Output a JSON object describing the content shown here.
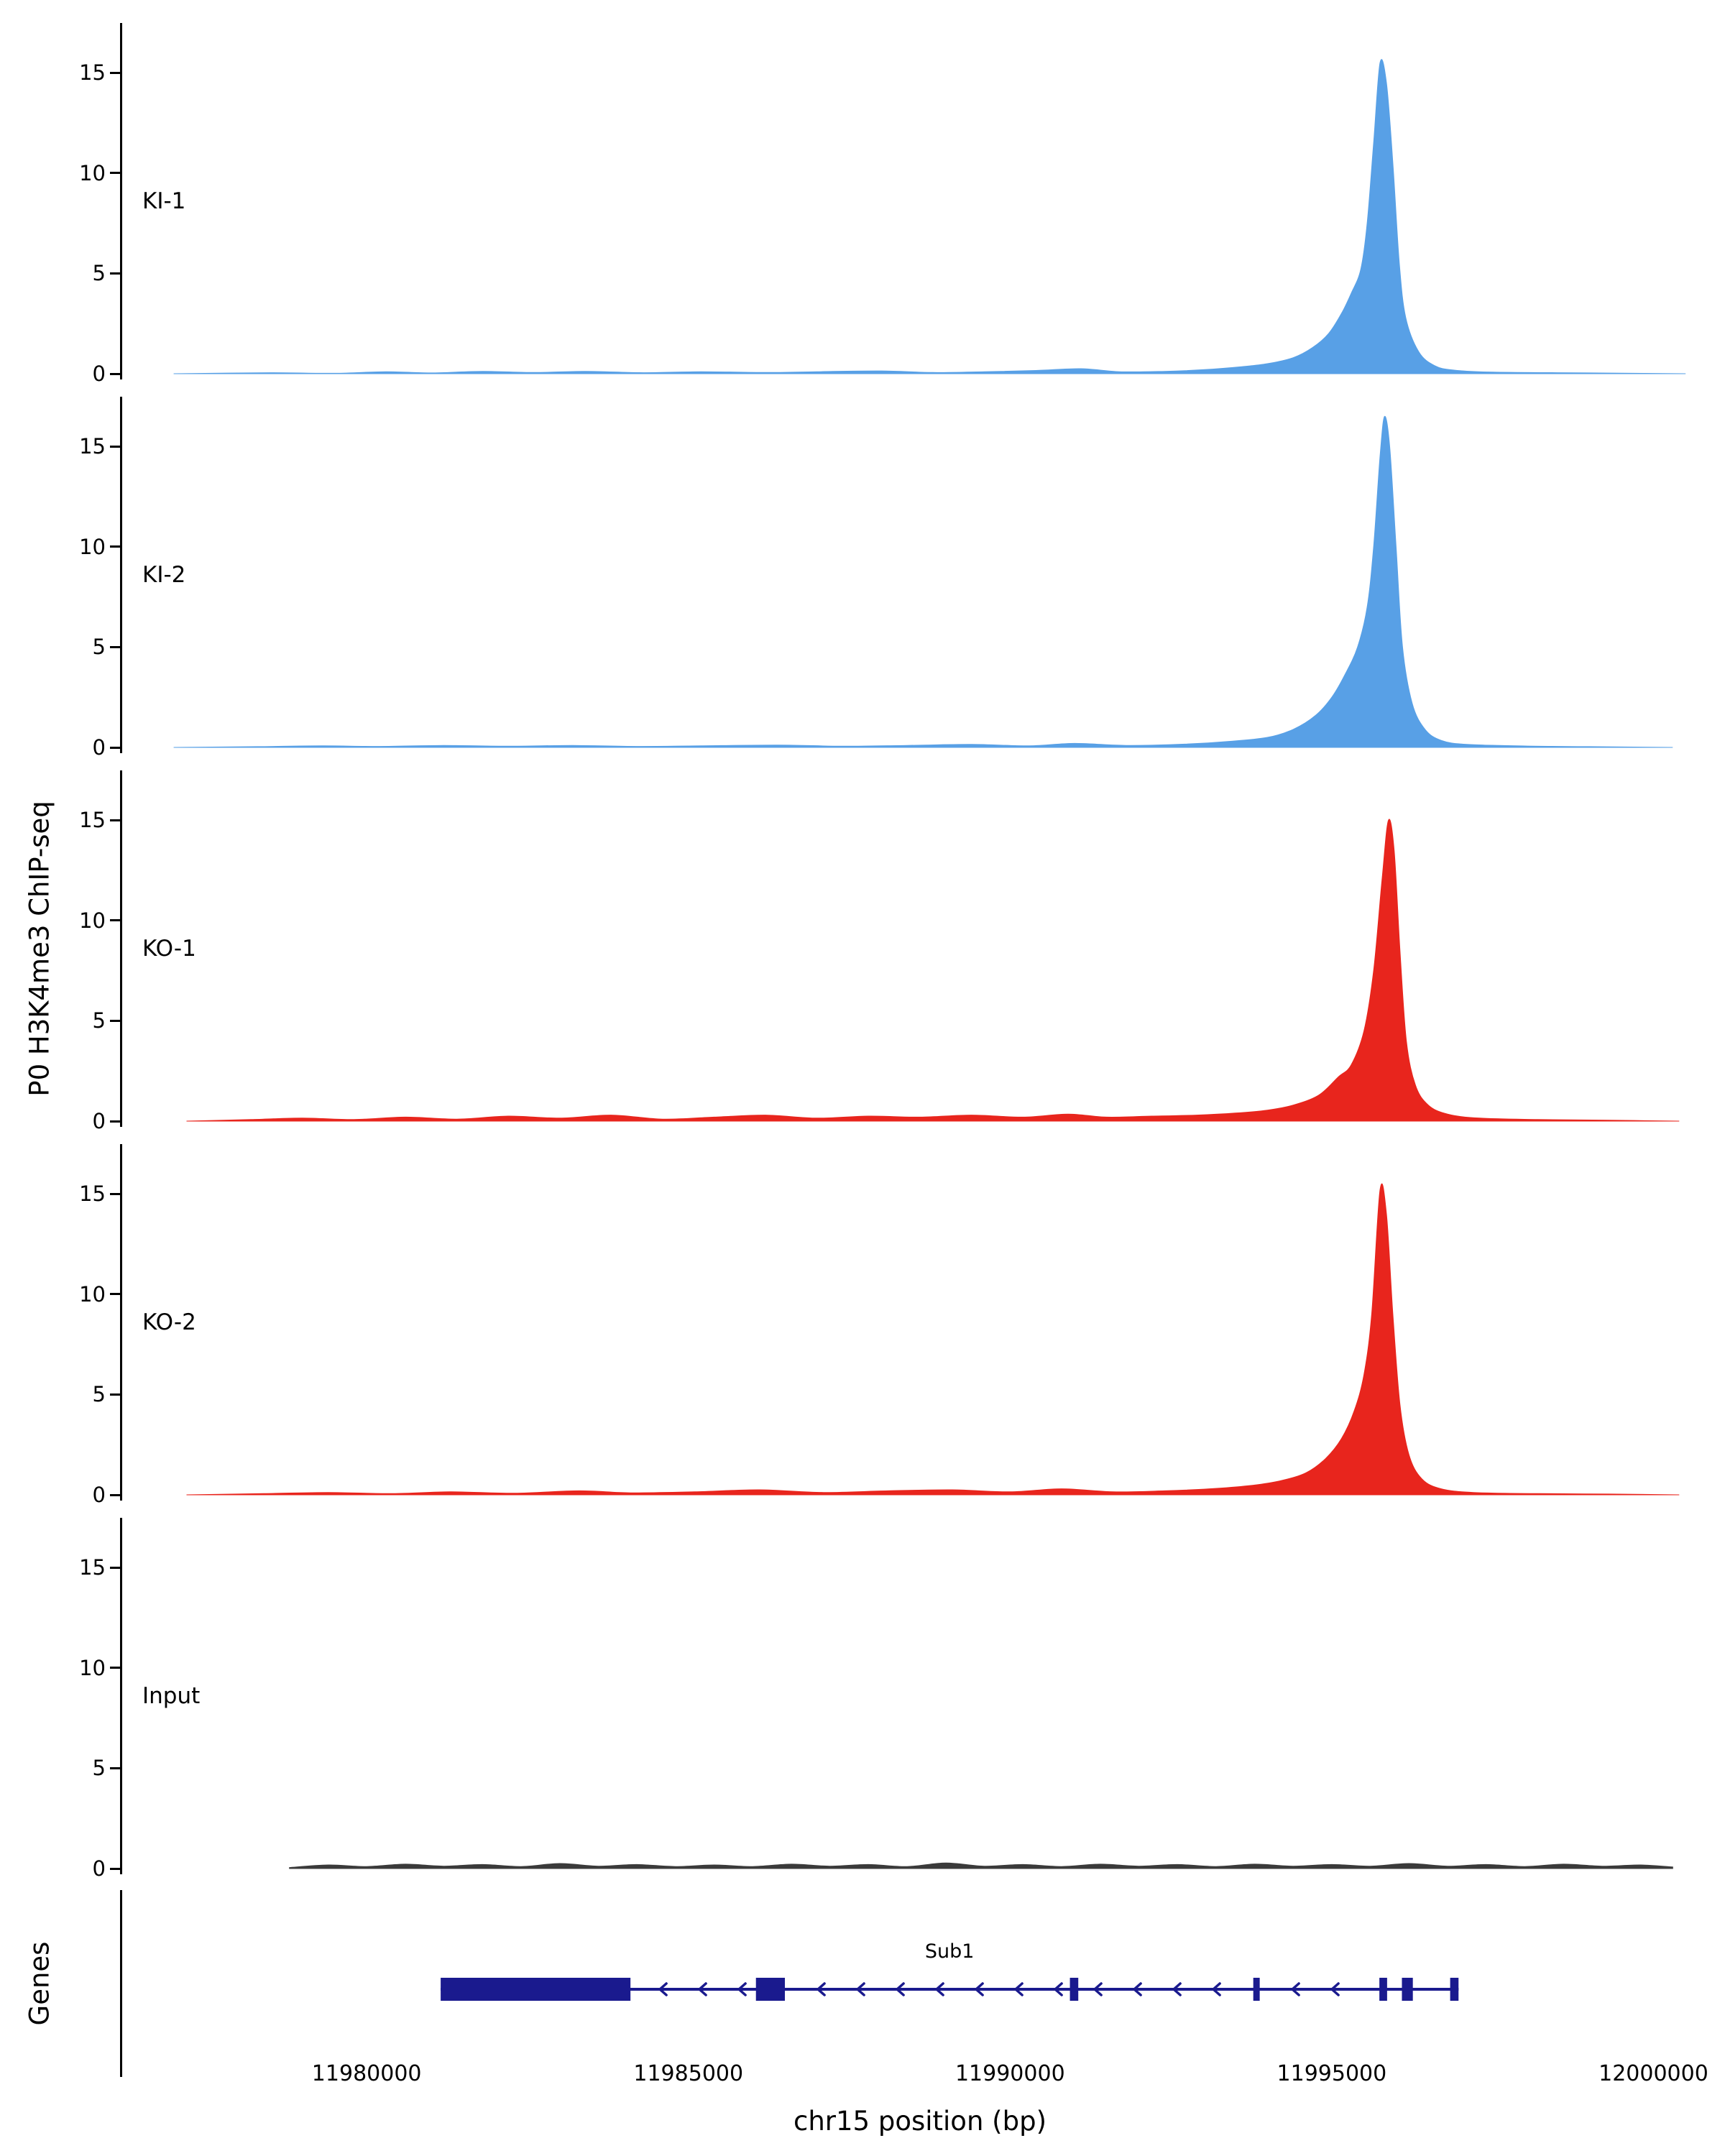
{
  "figure": {
    "ylabel_left": "P0 H3K4me3 ChIP-seq",
    "genes_label": "Genes",
    "xlabel": "chr15 position (bp)"
  },
  "chart_data": {
    "type": "area",
    "title": "",
    "xlabel": "chr15 position (bp)",
    "ylabel": "P0 H3K4me3 ChIP-seq",
    "xlim": [
      11976200,
      12001000
    ],
    "ylim": [
      0,
      17.2
    ],
    "x_ticks": [
      11980000,
      11985000,
      11990000,
      11995000,
      12000000
    ],
    "y_ticks": [
      0,
      5,
      10,
      15
    ],
    "grid": false,
    "legend": "none",
    "panels": [
      {
        "label": "KI-1",
        "color": "#58A0E6",
        "peak_summit_bp": 11995750,
        "peak_height": 15.5,
        "points": [
          [
            11977000,
            0
          ],
          [
            11978500,
            0.05
          ],
          [
            11979500,
            0.02
          ],
          [
            11980300,
            0.1
          ],
          [
            11981000,
            0.04
          ],
          [
            11981800,
            0.12
          ],
          [
            11982600,
            0.06
          ],
          [
            11983400,
            0.12
          ],
          [
            11984300,
            0.05
          ],
          [
            11985200,
            0.1
          ],
          [
            11986200,
            0.06
          ],
          [
            11987000,
            0.1
          ],
          [
            11988000,
            0.14
          ],
          [
            11988800,
            0.06
          ],
          [
            11989600,
            0.1
          ],
          [
            11990400,
            0.16
          ],
          [
            11991100,
            0.25
          ],
          [
            11991700,
            0.1
          ],
          [
            11992400,
            0.12
          ],
          [
            11993000,
            0.2
          ],
          [
            11993600,
            0.35
          ],
          [
            11994000,
            0.5
          ],
          [
            11994400,
            0.8
          ],
          [
            11994700,
            1.3
          ],
          [
            11994950,
            2.0
          ],
          [
            11995150,
            3.0
          ],
          [
            11995300,
            4.0
          ],
          [
            11995450,
            5.2
          ],
          [
            11995550,
            7.5
          ],
          [
            11995650,
            11.5
          ],
          [
            11995750,
            15.5
          ],
          [
            11995850,
            14.5
          ],
          [
            11995950,
            10.5
          ],
          [
            11996050,
            5.5
          ],
          [
            11996150,
            2.8
          ],
          [
            11996350,
            1.1
          ],
          [
            11996600,
            0.4
          ],
          [
            11996900,
            0.18
          ],
          [
            11997500,
            0.08
          ],
          [
            11998500,
            0.05
          ],
          [
            11999500,
            0.03
          ],
          [
            12000500,
            0
          ]
        ]
      },
      {
        "label": "KI-2",
        "color": "#58A0E6",
        "peak_summit_bp": 11995820,
        "peak_height": 16.5,
        "points": [
          [
            11977000,
            0
          ],
          [
            11978300,
            0.04
          ],
          [
            11979300,
            0.08
          ],
          [
            11980200,
            0.05
          ],
          [
            11981200,
            0.1
          ],
          [
            11982200,
            0.06
          ],
          [
            11983200,
            0.1
          ],
          [
            11984200,
            0.05
          ],
          [
            11985200,
            0.08
          ],
          [
            11986400,
            0.12
          ],
          [
            11987400,
            0.06
          ],
          [
            11988400,
            0.1
          ],
          [
            11989400,
            0.15
          ],
          [
            11990300,
            0.08
          ],
          [
            11991000,
            0.2
          ],
          [
            11991800,
            0.1
          ],
          [
            11992600,
            0.15
          ],
          [
            11993400,
            0.3
          ],
          [
            11994000,
            0.5
          ],
          [
            11994400,
            0.9
          ],
          [
            11994750,
            1.6
          ],
          [
            11995000,
            2.5
          ],
          [
            11995200,
            3.6
          ],
          [
            11995400,
            5.0
          ],
          [
            11995550,
            7.0
          ],
          [
            11995650,
            10.0
          ],
          [
            11995750,
            14.5
          ],
          [
            11995820,
            16.5
          ],
          [
            11995900,
            15.0
          ],
          [
            11996000,
            10.0
          ],
          [
            11996100,
            5.0
          ],
          [
            11996250,
            2.2
          ],
          [
            11996450,
            0.9
          ],
          [
            11996700,
            0.35
          ],
          [
            11997100,
            0.15
          ],
          [
            11998000,
            0.07
          ],
          [
            11999000,
            0.04
          ],
          [
            12000300,
            0
          ]
        ]
      },
      {
        "label": "KO-1",
        "color": "#E8251D",
        "peak_summit_bp": 11995880,
        "peak_height": 15.0,
        "points": [
          [
            11977200,
            0
          ],
          [
            11978200,
            0.08
          ],
          [
            11979000,
            0.15
          ],
          [
            11979800,
            0.08
          ],
          [
            11980600,
            0.2
          ],
          [
            11981400,
            0.1
          ],
          [
            11982200,
            0.25
          ],
          [
            11983000,
            0.15
          ],
          [
            11983800,
            0.3
          ],
          [
            11984600,
            0.1
          ],
          [
            11985400,
            0.2
          ],
          [
            11986200,
            0.3
          ],
          [
            11987000,
            0.15
          ],
          [
            11987800,
            0.25
          ],
          [
            11988600,
            0.2
          ],
          [
            11989400,
            0.3
          ],
          [
            11990200,
            0.2
          ],
          [
            11990900,
            0.35
          ],
          [
            11991500,
            0.2
          ],
          [
            11992200,
            0.25
          ],
          [
            11992900,
            0.3
          ],
          [
            11993500,
            0.4
          ],
          [
            11994000,
            0.55
          ],
          [
            11994400,
            0.8
          ],
          [
            11994800,
            1.3
          ],
          [
            11995100,
            2.2
          ],
          [
            11995300,
            2.8
          ],
          [
            11995500,
            4.5
          ],
          [
            11995650,
            7.5
          ],
          [
            11995780,
            12.0
          ],
          [
            11995880,
            15.0
          ],
          [
            11995970,
            13.5
          ],
          [
            11996060,
            8.5
          ],
          [
            11996160,
            4.0
          ],
          [
            11996300,
            1.8
          ],
          [
            11996500,
            0.8
          ],
          [
            11996800,
            0.35
          ],
          [
            11997300,
            0.15
          ],
          [
            11998200,
            0.08
          ],
          [
            11999200,
            0.05
          ],
          [
            12000400,
            0
          ]
        ]
      },
      {
        "label": "KO-2",
        "color": "#E8251D",
        "peak_summit_bp": 11995750,
        "peak_height": 15.2,
        "points": [
          [
            11977200,
            0
          ],
          [
            11978400,
            0.06
          ],
          [
            11979400,
            0.12
          ],
          [
            11980400,
            0.06
          ],
          [
            11981300,
            0.15
          ],
          [
            11982300,
            0.08
          ],
          [
            11983300,
            0.2
          ],
          [
            11984100,
            0.1
          ],
          [
            11985100,
            0.15
          ],
          [
            11986100,
            0.25
          ],
          [
            11987100,
            0.12
          ],
          [
            11988100,
            0.2
          ],
          [
            11989100,
            0.25
          ],
          [
            11990000,
            0.15
          ],
          [
            11990800,
            0.3
          ],
          [
            11991600,
            0.15
          ],
          [
            11992400,
            0.2
          ],
          [
            11993100,
            0.3
          ],
          [
            11993700,
            0.45
          ],
          [
            11994200,
            0.7
          ],
          [
            11994600,
            1.1
          ],
          [
            11994900,
            1.8
          ],
          [
            11995150,
            2.8
          ],
          [
            11995350,
            4.2
          ],
          [
            11995500,
            6.0
          ],
          [
            11995620,
            9.0
          ],
          [
            11995750,
            15.2
          ],
          [
            11995850,
            14.0
          ],
          [
            11995950,
            9.0
          ],
          [
            11996060,
            4.5
          ],
          [
            11996200,
            2.0
          ],
          [
            11996400,
            0.8
          ],
          [
            11996700,
            0.3
          ],
          [
            11997200,
            0.12
          ],
          [
            11998200,
            0.06
          ],
          [
            11999300,
            0.04
          ],
          [
            12000400,
            0
          ]
        ]
      },
      {
        "label": "Input",
        "color": "#3A3A3A",
        "peak_summit_bp": null,
        "peak_height": 0.3,
        "points": [
          [
            11978800,
            0.05
          ],
          [
            11979400,
            0.18
          ],
          [
            11980000,
            0.1
          ],
          [
            11980600,
            0.22
          ],
          [
            11981200,
            0.12
          ],
          [
            11981800,
            0.2
          ],
          [
            11982400,
            0.1
          ],
          [
            11983000,
            0.25
          ],
          [
            11983600,
            0.12
          ],
          [
            11984200,
            0.2
          ],
          [
            11984800,
            0.1
          ],
          [
            11985400,
            0.18
          ],
          [
            11986000,
            0.1
          ],
          [
            11986600,
            0.22
          ],
          [
            11987200,
            0.12
          ],
          [
            11987800,
            0.2
          ],
          [
            11988400,
            0.1
          ],
          [
            11989000,
            0.28
          ],
          [
            11989600,
            0.12
          ],
          [
            11990200,
            0.2
          ],
          [
            11990800,
            0.1
          ],
          [
            11991400,
            0.22
          ],
          [
            11992000,
            0.12
          ],
          [
            11992600,
            0.2
          ],
          [
            11993200,
            0.1
          ],
          [
            11993800,
            0.22
          ],
          [
            11994400,
            0.12
          ],
          [
            11995000,
            0.2
          ],
          [
            11995600,
            0.12
          ],
          [
            11996200,
            0.25
          ],
          [
            11996800,
            0.12
          ],
          [
            11997400,
            0.2
          ],
          [
            11998000,
            0.1
          ],
          [
            11998600,
            0.22
          ],
          [
            11999200,
            0.12
          ],
          [
            11999800,
            0.18
          ],
          [
            12000300,
            0.08
          ]
        ]
      }
    ],
    "genes": {
      "name": "Sub1",
      "strand": "-",
      "color": "#1A1A8E",
      "start": 11981150,
      "end": 11996970,
      "exons": [
        [
          11981150,
          11984100
        ],
        [
          11986050,
          11986500
        ],
        [
          11990930,
          11991060
        ],
        [
          11993780,
          11993880
        ],
        [
          11995740,
          11995860
        ],
        [
          11996090,
          11996260
        ],
        [
          11996840,
          11996970
        ]
      ]
    }
  }
}
